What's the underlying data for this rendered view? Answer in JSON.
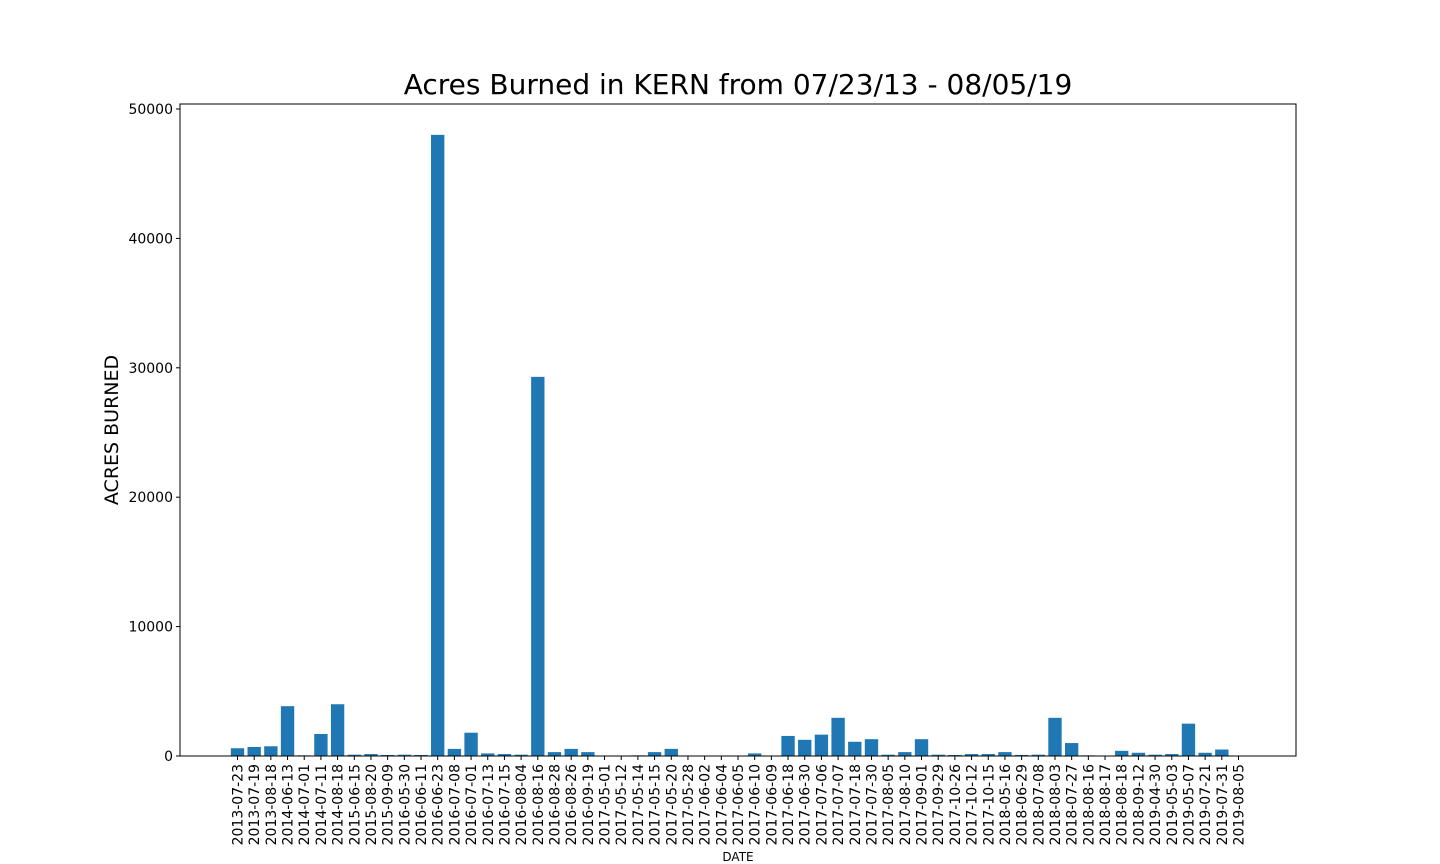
{
  "chart_data": {
    "type": "bar",
    "title": "Acres Burned in KERN from 07/23/13 - 08/05/19",
    "xlabel": "DATE",
    "ylabel": "ACRES BURNED",
    "ylim": [
      0,
      50000
    ],
    "yticks": [
      0,
      10000,
      20000,
      30000,
      40000,
      50000
    ],
    "grid": false,
    "bar_color": "#1f77b4",
    "categories": [
      "2013-07-23",
      "2013-07-19",
      "2013-08-18",
      "2014-06-13",
      "2014-07-01",
      "2014-07-11",
      "2014-08-18",
      "2015-06-15",
      "2015-08-20",
      "2015-09-09",
      "2016-05-30",
      "2016-06-11",
      "2016-06-23",
      "2016-07-08",
      "2016-07-01",
      "2016-07-13",
      "2016-07-15",
      "2016-08-04",
      "2016-08-16",
      "2016-08-28",
      "2016-08-26",
      "2016-09-19",
      "2017-05-01",
      "2017-05-12",
      "2017-05-14",
      "2017-05-15",
      "2017-05-20",
      "2017-05-28",
      "2017-06-02",
      "2017-06-04",
      "2017-06-05",
      "2017-06-10",
      "2017-06-09",
      "2017-06-18",
      "2017-06-30",
      "2017-07-06",
      "2017-07-07",
      "2017-07-18",
      "2017-07-30",
      "2017-08-05",
      "2017-08-10",
      "2017-09-01",
      "2017-09-29",
      "2017-10-26",
      "2017-10-12",
      "2017-10-15",
      "2018-05-16",
      "2018-06-29",
      "2018-07-08",
      "2018-08-03",
      "2018-07-27",
      "2018-08-16",
      "2018-08-17",
      "2018-08-18",
      "2018-09-12",
      "2019-04-30",
      "2019-05-03",
      "2019-05-07",
      "2019-07-21",
      "2019-07-31",
      "2019-08-05"
    ],
    "values": [
      600,
      700,
      750,
      3850,
      50,
      1700,
      4000,
      100,
      150,
      80,
      100,
      80,
      48000,
      550,
      1800,
      200,
      150,
      100,
      29300,
      300,
      550,
      300,
      0,
      0,
      50,
      300,
      550,
      0,
      0,
      0,
      0,
      200,
      0,
      1550,
      1250,
      1650,
      2950,
      1100,
      1300,
      100,
      300,
      1300,
      100,
      80,
      150,
      150,
      300,
      80,
      100,
      2950,
      1000,
      50,
      0,
      400,
      250,
      100,
      150,
      2500,
      250,
      500,
      0
    ]
  }
}
